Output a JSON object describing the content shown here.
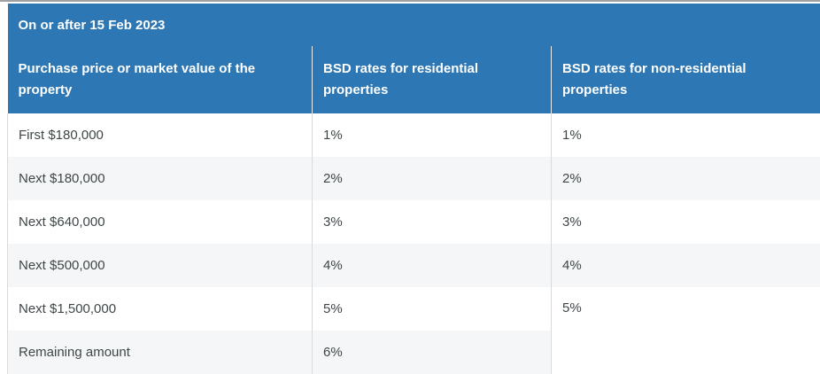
{
  "page": {
    "top_rule_color": "#9fa1a3",
    "background": "#ffffff"
  },
  "table": {
    "title": "On or after 15 Feb 2023",
    "columns": [
      "Purchase price or market value of the property",
      "BSD rates for residential properties",
      "BSD rates for non-residential properties"
    ],
    "rows": [
      {
        "price_band": "First $180,000",
        "residential_rate": "1%",
        "non_residential_rate": "1%"
      },
      {
        "price_band": "Next $180,000",
        "residential_rate": "2%",
        "non_residential_rate": "2%"
      },
      {
        "price_band": "Next $640,000",
        "residential_rate": "3%",
        "non_residential_rate": "3%"
      },
      {
        "price_band": "Next $500,000",
        "residential_rate": "4%",
        "non_residential_rate": "4%"
      },
      {
        "price_band": "Next $1,500,000",
        "residential_rate": "5%",
        "non_residential_rate": "5%"
      },
      {
        "price_band": "Remaining amount",
        "residential_rate": "6%"
      }
    ],
    "notes": {
      "merged_cell": "non-residential 5% cell spans the last two rows"
    },
    "colors": {
      "header_bg": "#2d77b5",
      "header_text": "#ffffff",
      "header_divider": "#e7edf3",
      "row_bg": "#ffffff",
      "row_alt_bg": "#f5f6f8",
      "body_text": "#3e4748",
      "body_divider": "#d9dadb"
    }
  }
}
